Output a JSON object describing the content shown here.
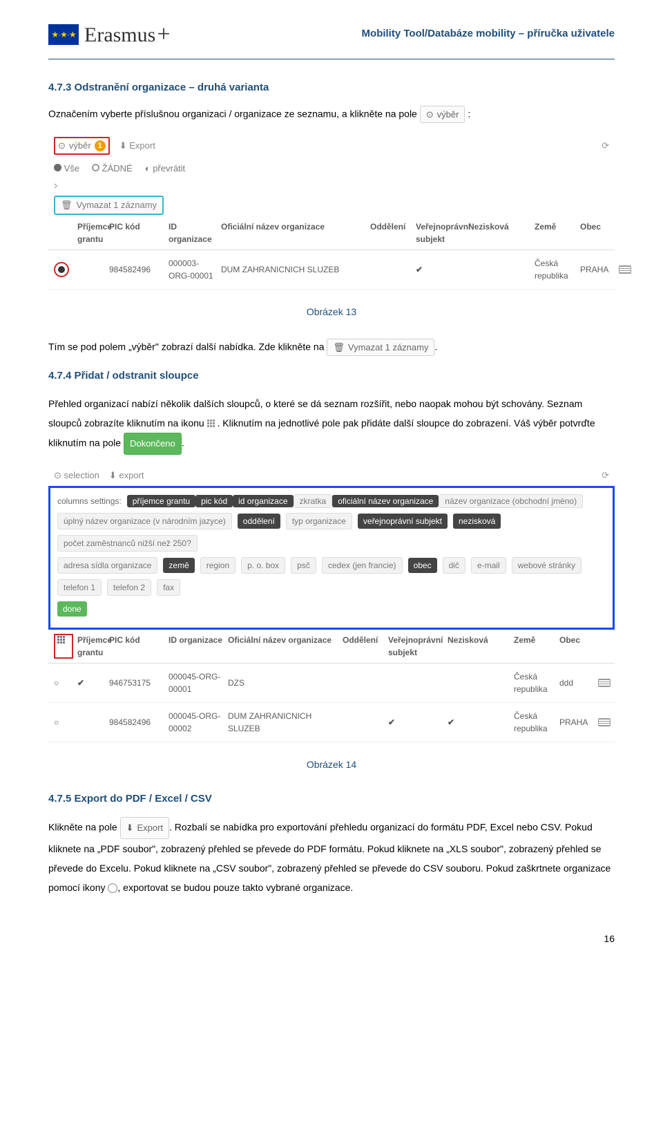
{
  "header": {
    "brand": "Erasmus",
    "plus": "+",
    "right": "Mobility Tool/Databáze mobility – příručka uživatele"
  },
  "section473": {
    "title": "4.7.3  Odstranění organizace – druhá varianta",
    "para1_a": "Označením vyberte příslušnou organizaci / organizace ze seznamu, a klikněte na pole ",
    "vyber_btn_text": "výběr",
    "colon": ":",
    "caption": "Obrázek 13",
    "para2_a": "Tím se pod polem „výběr\" zobrazí další nabídka. Zde klikněte na ",
    "vymazat_btn_text": "Vymazat 1 záznamy",
    "period": "."
  },
  "shot1": {
    "toolbar": {
      "vyber": "výběr",
      "badge": "1",
      "export": "Export"
    },
    "filter": {
      "vse": "Vše",
      "zadne": "ŽÁDNÉ",
      "prevratit": "převrátit"
    },
    "vymazat": "Vymazat 1 záznamy",
    "columns": [
      "",
      "Příjemce grantu",
      "PIC kód",
      "ID organizace",
      "Oficiální název organizace",
      "Oddělení",
      "Veřejnoprávní subjekt",
      "Nezisková",
      "Země",
      "Obec",
      ""
    ],
    "row": {
      "pic": "984582496",
      "orgid": "000003-ORG-00001",
      "name": "DUM ZAHRANICNICH SLUZEB",
      "country": "Česká republika",
      "city": "PRAHA"
    }
  },
  "section474": {
    "title": "4.7.4  Přidat / odstranit sloupce",
    "para1_a": "Přehled organizací nabízí několik dalších sloupců, o které se dá seznam rozšířit, nebo naopak mohou být schovány. Seznam sloupců zobrazíte kliknutím na ikonu ",
    "para1_b": ". Kliknutím na jednotlivé pole pak přidáte další sloupce do zobrazení. Váš výběr potvrďte kliknutím na pole ",
    "done_btn": "Dokončeno",
    "period": "."
  },
  "shot2": {
    "toolbar": {
      "selection": "selection",
      "export": "export"
    },
    "label": "columns settings:",
    "chips_row1": [
      {
        "text": "příjemce grantu",
        "filled": true
      },
      {
        "text": "pic kód",
        "filled": true
      },
      {
        "text": "id organizace",
        "filled": true
      },
      {
        "text": "zkratka",
        "filled": false
      },
      {
        "text": "oficiální název organizace",
        "filled": true
      },
      {
        "text": "název organizace (obchodní jméno)",
        "filled": false
      }
    ],
    "chips_row2": [
      {
        "text": "úplný název organizace (v národním jazyce)",
        "filled": false
      },
      {
        "text": "oddělení",
        "filled": true
      },
      {
        "text": "typ organizace",
        "filled": false
      },
      {
        "text": "veřejnoprávní subjekt",
        "filled": true
      },
      {
        "text": "nezisková",
        "filled": true
      },
      {
        "text": "počet zaměstnanců nižší než 250?",
        "filled": false
      }
    ],
    "chips_row3": [
      {
        "text": "adresa sídla organizace",
        "filled": false
      },
      {
        "text": "země",
        "filled": true
      },
      {
        "text": "region",
        "filled": false
      },
      {
        "text": "p. o. box",
        "filled": false
      },
      {
        "text": "psč",
        "filled": false
      },
      {
        "text": "cedex (jen francie)",
        "filled": false
      },
      {
        "text": "obec",
        "filled": true
      },
      {
        "text": "dič",
        "filled": false
      },
      {
        "text": "e-mail",
        "filled": false
      },
      {
        "text": "webové stránky",
        "filled": false
      },
      {
        "text": "telefon 1",
        "filled": false
      },
      {
        "text": "telefon 2",
        "filled": false
      },
      {
        "text": "fax",
        "filled": false
      }
    ],
    "done": "done",
    "columns": [
      "",
      "Příjemce grantu",
      "PIC kód",
      "ID organizace",
      "Oficiální název organizace",
      "Oddělení",
      "Veřejnoprávní subjekt",
      "Nezisková",
      "Země",
      "Obec",
      ""
    ],
    "rows": [
      {
        "sel": "○",
        "flag": "✔",
        "pic": "946753175",
        "orgid": "000045-ORG-00001",
        "name": "DZS",
        "dept": "",
        "pub": "",
        "nz": "",
        "country": "Česká republika",
        "city": "ddd"
      },
      {
        "sel": "○",
        "flag": "",
        "pic": "984582496",
        "orgid": "000045-ORG-00002",
        "name": "DUM ZAHRANICNICH SLUZEB",
        "dept": "",
        "pub": "✔",
        "nz": "✔",
        "country": "Česká republika",
        "city": "PRAHA"
      }
    ],
    "caption": "Obrázek 14"
  },
  "section475": {
    "title": "4.7.5  Export do PDF / Excel / CSV",
    "para_a": "Klikněte na pole ",
    "export_btn": "Export",
    "para_b": ". Rozbalí se nabídka pro exportování přehledu organizací do formátu PDF, Excel nebo CSV. Pokud kliknete na „PDF soubor\", zobrazený přehled se převede do PDF formátu. Pokud kliknete na „XLS soubor\", zobrazený přehled se převede do Excelu. Pokud kliknete na „CSV soubor\", zobrazený přehled se převede do CSV souboru. Pokud zaškrtnete organizace pomocí ikony ",
    "para_c": ", exportovat se budou pouze takto vybrané organizace."
  },
  "pagenum": "16"
}
